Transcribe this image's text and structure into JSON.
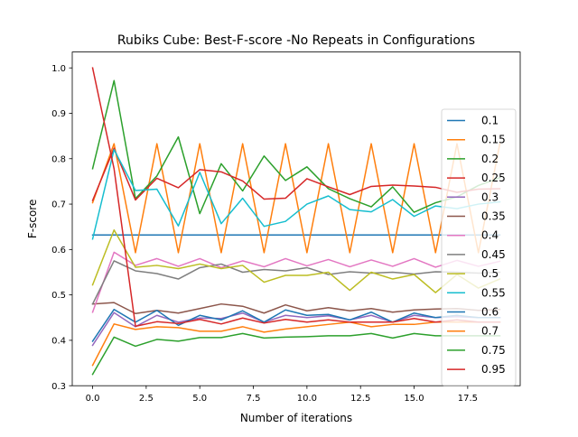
{
  "chart_data": {
    "type": "line",
    "title": "Rubiks Cube: Best-F-score -No Repeats in Configurations",
    "xlabel": "Number of iterations",
    "ylabel": "F-score",
    "xlim": [
      -0.95,
      19.95
    ],
    "ylim": [
      0.3,
      1.035
    ],
    "xticks": [
      0.0,
      2.5,
      5.0,
      7.5,
      10.0,
      12.5,
      15.0,
      17.5
    ],
    "xtick_labels": [
      "0.0",
      "2.5",
      "5.0",
      "7.5",
      "10.0",
      "12.5",
      "15.0",
      "17.5"
    ],
    "yticks": [
      0.3,
      0.4,
      0.5,
      0.6,
      0.7,
      0.8,
      0.9,
      1.0
    ],
    "ytick_labels": [
      "0.3",
      "0.4",
      "0.5",
      "0.6",
      "0.7",
      "0.8",
      "0.9",
      "1.0"
    ],
    "grid": false,
    "legend_position": "right",
    "x": [
      0,
      1,
      2,
      3,
      4,
      5,
      6,
      7,
      8,
      9,
      10,
      11,
      12,
      13,
      14,
      15,
      16,
      17,
      18,
      19
    ],
    "series": [
      {
        "name": "0.1",
        "color": "#1f77b4",
        "values": [
          0.632,
          0.632,
          0.632,
          0.632,
          0.632,
          0.632,
          0.632,
          0.632,
          0.632,
          0.632,
          0.632,
          0.632,
          0.632,
          0.632,
          0.632,
          0.632,
          0.632,
          0.632,
          0.632,
          0.632
        ]
      },
      {
        "name": "0.15",
        "color": "#ff7f0e",
        "values": [
          0.703,
          0.833,
          0.593,
          0.833,
          0.593,
          0.833,
          0.593,
          0.833,
          0.593,
          0.833,
          0.593,
          0.833,
          0.593,
          0.833,
          0.593,
          0.833,
          0.593,
          0.833,
          0.593,
          0.833
        ]
      },
      {
        "name": "0.2",
        "color": "#2ca02c",
        "values": [
          0.778,
          0.972,
          0.712,
          0.762,
          0.848,
          0.679,
          0.789,
          0.729,
          0.806,
          0.752,
          0.782,
          0.734,
          0.712,
          0.694,
          0.738,
          0.682,
          0.703,
          0.716,
          0.741,
          0.758
        ]
      },
      {
        "name": "0.25",
        "color": "#d62728",
        "values": [
          0.708,
          0.823,
          0.709,
          0.757,
          0.736,
          0.776,
          0.771,
          0.751,
          0.711,
          0.713,
          0.756,
          0.738,
          0.721,
          0.739,
          0.742,
          0.74,
          0.737,
          0.726,
          0.733,
          0.734
        ]
      },
      {
        "name": "0.3",
        "color": "#9467bd",
        "values": [
          0.389,
          0.461,
          0.43,
          0.455,
          0.44,
          0.449,
          0.448,
          0.46,
          0.44,
          0.455,
          0.45,
          0.454,
          0.445,
          0.455,
          0.44,
          0.455,
          0.45,
          0.452,
          0.45,
          0.45
        ]
      },
      {
        "name": "0.35",
        "color": "#8c564b",
        "values": [
          0.48,
          0.483,
          0.459,
          0.466,
          0.46,
          0.47,
          0.48,
          0.475,
          0.46,
          0.478,
          0.465,
          0.472,
          0.465,
          0.47,
          0.462,
          0.467,
          0.469,
          0.47,
          0.466,
          0.468
        ]
      },
      {
        "name": "0.4",
        "color": "#e377c2",
        "values": [
          0.462,
          0.594,
          0.565,
          0.58,
          0.563,
          0.58,
          0.56,
          0.575,
          0.562,
          0.58,
          0.564,
          0.578,
          0.562,
          0.577,
          0.563,
          0.58,
          0.561,
          0.576,
          0.563,
          0.574
        ]
      },
      {
        "name": "0.45",
        "color": "#7f7f7f",
        "values": [
          0.48,
          0.575,
          0.553,
          0.547,
          0.535,
          0.56,
          0.568,
          0.55,
          0.556,
          0.553,
          0.56,
          0.545,
          0.551,
          0.548,
          0.55,
          0.546,
          0.551,
          0.55,
          0.548,
          0.55
        ]
      },
      {
        "name": "0.5",
        "color": "#bcbd22",
        "values": [
          0.522,
          0.643,
          0.561,
          0.565,
          0.558,
          0.568,
          0.558,
          0.565,
          0.528,
          0.543,
          0.543,
          0.55,
          0.51,
          0.55,
          0.535,
          0.545,
          0.505,
          0.545,
          0.515,
          0.535
        ]
      },
      {
        "name": "0.55",
        "color": "#17becf",
        "values": [
          0.623,
          0.82,
          0.73,
          0.733,
          0.652,
          0.77,
          0.657,
          0.713,
          0.651,
          0.662,
          0.7,
          0.718,
          0.688,
          0.683,
          0.71,
          0.673,
          0.696,
          0.69,
          0.7,
          0.705
        ]
      },
      {
        "name": "0.6",
        "color": "#1f77b4",
        "values": [
          0.398,
          0.468,
          0.44,
          0.466,
          0.433,
          0.455,
          0.445,
          0.465,
          0.44,
          0.467,
          0.455,
          0.457,
          0.445,
          0.462,
          0.44,
          0.46,
          0.45,
          0.455,
          0.45,
          0.45
        ]
      },
      {
        "name": "0.7",
        "color": "#ff7f0e",
        "values": [
          0.345,
          0.436,
          0.424,
          0.43,
          0.428,
          0.42,
          0.42,
          0.43,
          0.418,
          0.425,
          0.43,
          0.435,
          0.44,
          0.43,
          0.435,
          0.435,
          0.44,
          0.44,
          0.44,
          0.44
        ]
      },
      {
        "name": "0.75",
        "color": "#2ca02c",
        "values": [
          0.325,
          0.407,
          0.387,
          0.402,
          0.398,
          0.406,
          0.406,
          0.415,
          0.405,
          0.407,
          0.408,
          0.41,
          0.41,
          0.415,
          0.405,
          0.415,
          0.41,
          0.41,
          0.41,
          0.41
        ]
      },
      {
        "name": "0.95",
        "color": "#d62728",
        "values": [
          1.0,
          0.778,
          0.431,
          0.441,
          0.437,
          0.446,
          0.436,
          0.449,
          0.438,
          0.446,
          0.44,
          0.445,
          0.44,
          0.44,
          0.44,
          0.448,
          0.44,
          0.445,
          0.44,
          0.44
        ]
      }
    ]
  }
}
